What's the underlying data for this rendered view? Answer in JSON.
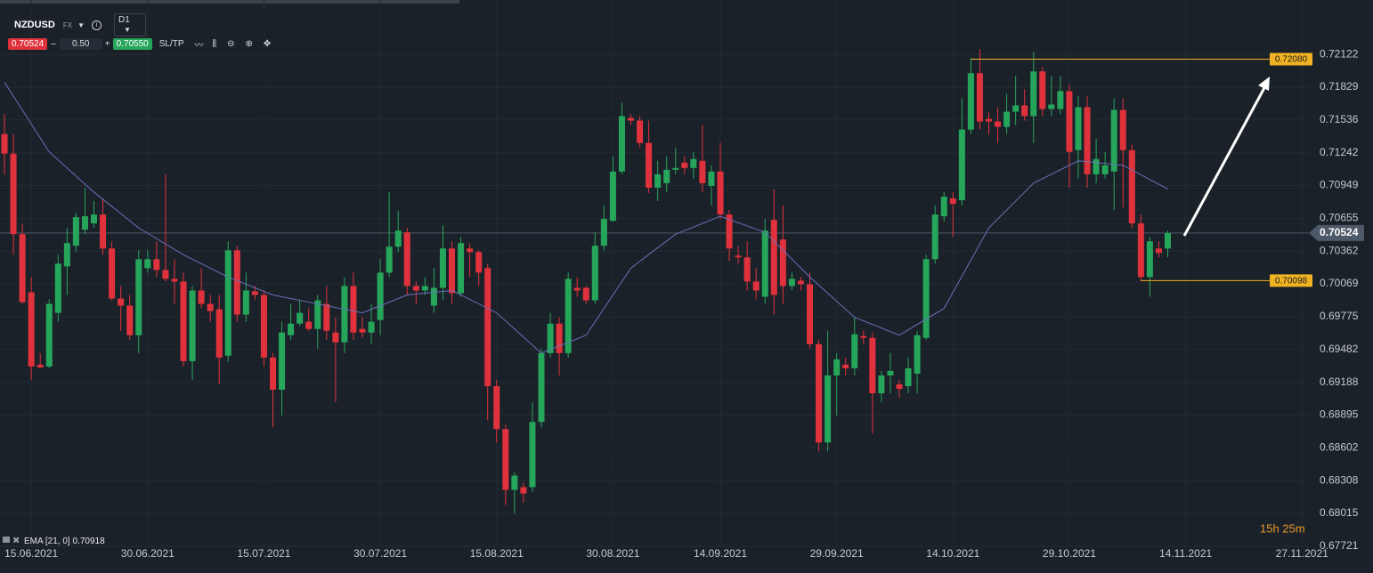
{
  "toolbar": {
    "symbol": "NZDUSD",
    "market": "FX",
    "timeframe": "D1",
    "sell_price": "0.70524",
    "spread": "0.50",
    "buy_price": "0.70550",
    "sltp": "SL/TP"
  },
  "chart_data": {
    "type": "candlestick",
    "categories": [
      null,
      null,
      null,
      "15.06.2021",
      null,
      null,
      null,
      null,
      null,
      null,
      null,
      null,
      null,
      null,
      null,
      null,
      "30.06.2021",
      null,
      null,
      null,
      null,
      null,
      null,
      null,
      null,
      null,
      null,
      null,
      null,
      "15.07.2021",
      null,
      null,
      null,
      null,
      null,
      null,
      null,
      null,
      null,
      null,
      null,
      null,
      "30.07.2021",
      null,
      null,
      null,
      null,
      null,
      null,
      null,
      null,
      null,
      null,
      null,
      null,
      "15.08.2021",
      null,
      null,
      null,
      null,
      null,
      null,
      null,
      null,
      null,
      null,
      null,
      null,
      "30.08.2021",
      null,
      null,
      null,
      null,
      null,
      null,
      null,
      null,
      null,
      null,
      null,
      "14.09.2021",
      null,
      null,
      null,
      null,
      null,
      null,
      null,
      null,
      null,
      null,
      null,
      null,
      "29.09.2021",
      null,
      null,
      null,
      null,
      null,
      null,
      null,
      null,
      null,
      null,
      null,
      null,
      "14.10.2021",
      null,
      null,
      null,
      null,
      null,
      null,
      null,
      null,
      null,
      null,
      null,
      null,
      "29.10.2021",
      null,
      null,
      null,
      null,
      null,
      null,
      null,
      null,
      null,
      null,
      null,
      null,
      "14.11.2021",
      null,
      null,
      null,
      null,
      null,
      null,
      null,
      null,
      null,
      null,
      null,
      null,
      "27.11.2021"
    ],
    "open": [
      0.7141,
      0.71234,
      0.70514,
      0.69994,
      0.69346,
      0.6933,
      0.6981,
      0.70226,
      0.7041,
      0.70554,
      0.7061,
      0.7069,
      0.70386,
      0.69938,
      0.69874,
      0.6961,
      0.7021,
      0.7029,
      0.70194,
      0.70114,
      0.7009,
      0.69378,
      0.7001,
      0.6989,
      0.69842,
      0.69426,
      0.7037,
      0.69794,
      0.70002,
      0.6997,
      0.6941,
      0.69122,
      0.6961,
      0.69714,
      0.6973,
      0.69666,
      0.6989,
      0.69634,
      0.69546,
      0.7005,
      0.69666,
      0.69634,
      0.69746,
      0.7017,
      0.70402,
      0.7053,
      0.7005,
      0.7001,
      0.69874,
      0.70034,
      0.70386,
      0.69986,
      0.70386,
      0.70354,
      0.7021,
      0.69154,
      0.6877,
      0.68226,
      0.6825,
      0.6825,
      0.68834,
      0.6945,
      0.69714,
      0.6945,
      0.70034,
      0.70034,
      0.69922,
      0.7041,
      0.70634,
      0.71074,
      0.71554,
      0.7153,
      0.7133,
      0.7093,
      0.7097,
      0.7109,
      0.71154,
      0.71106,
      0.7117,
      0.70946,
      0.71074,
      0.7069,
      0.70322,
      0.70306,
      0.7009,
      0.69954,
      0.70642,
      0.70466,
      0.7005,
      0.70098,
      0.70066,
      0.6953,
      0.6865,
      0.6925,
      0.69346,
      0.69314,
      0.69602,
      0.69586,
      0.6909,
      0.6925,
      0.6917,
      0.69154,
      0.69266,
      0.69586,
      0.7029,
      0.70674,
      0.70834,
      0.70818,
      0.7145,
      0.71954,
      0.71546,
      0.71522,
      0.71474,
      0.7161,
      0.71666,
      0.7157,
      0.7197,
      0.71634,
      0.71634,
      0.71794,
      0.71266,
      0.7165,
      0.7105,
      0.7105,
      0.71074,
      0.71626,
      0.71266,
      0.7061,
      0.7013,
      0.70386,
      0.70386,
      null,
      null,
      null,
      null,
      null,
      null,
      null,
      null,
      null,
      null,
      null,
      null,
      null,
      null,
      null
    ],
    "high": [
      0.71586,
      0.7141,
      0.7061,
      0.7013,
      0.6945,
      0.6993,
      0.7033,
      0.7057,
      0.70706,
      0.7093,
      0.7081,
      0.70834,
      0.7045,
      0.7005,
      0.6997,
      0.7037,
      0.7037,
      0.7045,
      0.7105,
      0.7029,
      0.7017,
      0.7005,
      0.7021,
      0.6997,
      0.6997,
      0.7045,
      0.7041,
      0.7017,
      0.7005,
      0.7001,
      0.6945,
      0.6973,
      0.6989,
      0.6993,
      0.6985,
      0.6997,
      0.7005,
      0.6977,
      0.7013,
      0.7017,
      0.6977,
      0.6989,
      0.7029,
      0.7089,
      0.70722,
      0.7057,
      0.7009,
      0.7013,
      0.7021,
      0.70594,
      0.7045,
      0.7049,
      0.70434,
      0.7037,
      0.7025,
      0.6921,
      0.6881,
      0.68386,
      0.6829,
      0.6901,
      0.6949,
      0.6981,
      0.6977,
      0.7017,
      0.7013,
      0.7005,
      0.7053,
      0.7077,
      0.7121,
      0.7169,
      0.71586,
      0.7157,
      0.7153,
      0.7117,
      0.7121,
      0.7129,
      0.7121,
      0.7125,
      0.7149,
      0.7113,
      0.7133,
      0.7073,
      0.7041,
      0.7045,
      0.7021,
      0.7065,
      0.70914,
      0.7077,
      0.7017,
      0.7013,
      0.7017,
      0.6957,
      0.6965,
      0.6945,
      0.6941,
      0.6977,
      0.6965,
      0.69634,
      0.6929,
      0.6945,
      0.6921,
      0.6941,
      0.6965,
      0.7033,
      0.7077,
      0.7089,
      0.7089,
      0.7173,
      0.7209,
      0.7217,
      0.7161,
      0.7165,
      0.7177,
      0.7193,
      0.7181,
      0.72146,
      0.7201,
      0.7193,
      0.7193,
      0.7185,
      0.71746,
      0.71746,
      0.7137,
      0.7125,
      0.7173,
      0.7173,
      0.71314,
      0.7069,
      0.7049,
      0.7045,
      0.70546,
      null,
      null,
      null,
      null,
      null,
      null,
      null,
      null,
      null,
      null,
      null,
      null,
      null,
      null,
      null
    ],
    "low": [
      0.7105,
      0.7033,
      0.6989,
      0.6921,
      0.69314,
      0.69314,
      0.6973,
      0.6997,
      0.70354,
      0.70514,
      0.7057,
      0.7033,
      0.69922,
      0.6965,
      0.6957,
      0.6945,
      0.7017,
      0.7013,
      0.7009,
      0.6989,
      0.6933,
      0.6921,
      0.6985,
      0.6973,
      0.6917,
      0.6937,
      0.6973,
      0.6973,
      0.6993,
      0.6933,
      0.68786,
      0.6889,
      0.6957,
      0.6969,
      0.6965,
      0.6949,
      0.6957,
      0.6901,
      0.6945,
      0.6957,
      0.69586,
      0.6953,
      0.6961,
      0.7013,
      0.70354,
      0.6997,
      0.6989,
      0.6997,
      0.6981,
      0.6993,
      0.6989,
      0.69954,
      0.7013,
      0.7005,
      0.6885,
      0.6865,
      0.6809,
      0.6801,
      0.68114,
      0.6821,
      0.68786,
      0.6941,
      0.6925,
      0.6941,
      0.69954,
      0.6989,
      0.6989,
      0.7037,
      0.70626,
      0.7105,
      0.7149,
      0.7129,
      0.70882,
      0.7081,
      0.7089,
      0.7105,
      0.7105,
      0.7101,
      0.7089,
      0.7077,
      0.7065,
      0.70274,
      0.7025,
      0.7001,
      0.6993,
      0.6989,
      0.69794,
      0.6989,
      0.7001,
      0.7001,
      0.6949,
      0.6857,
      0.6857,
      0.6889,
      0.6925,
      0.6925,
      0.6953,
      0.6873,
      0.6901,
      0.6909,
      0.6905,
      0.6909,
      0.6909,
      0.6957,
      0.7025,
      0.70626,
      0.7049,
      0.7077,
      0.7141,
      0.7145,
      0.7141,
      0.7133,
      0.7141,
      0.7149,
      0.7153,
      0.7133,
      0.7157,
      0.7157,
      0.71586,
      0.7093,
      0.7101,
      0.7093,
      0.7097,
      0.7101,
      0.7073,
      0.70754,
      0.7057,
      0.7009,
      0.69954,
      0.70306,
      0.70306,
      null,
      null,
      null,
      null,
      null,
      null,
      null,
      null,
      null,
      null,
      null,
      null,
      null,
      null,
      null
    ],
    "close": [
      0.71234,
      0.70514,
      0.69906,
      0.6933,
      0.69322,
      0.6989,
      0.7025,
      0.70434,
      0.70666,
      0.70674,
      0.7069,
      0.70386,
      0.69938,
      0.69874,
      0.6961,
      0.7029,
      0.7029,
      0.70194,
      0.70114,
      0.7009,
      0.69378,
      0.7001,
      0.6989,
      0.69826,
      0.6941,
      0.7037,
      0.69794,
      0.7001,
      0.6997,
      0.6941,
      0.69122,
      0.69634,
      0.69714,
      0.6981,
      0.69666,
      0.69922,
      0.6965,
      0.69546,
      0.7005,
      0.69634,
      0.69634,
      0.6973,
      0.7017,
      0.70402,
      0.70546,
      0.7005,
      0.7001,
      0.7005,
      0.70034,
      0.70386,
      0.69986,
      0.70434,
      0.70354,
      0.7017,
      0.69154,
      0.6877,
      0.68226,
      0.68354,
      0.68194,
      0.68834,
      0.6945,
      0.69714,
      0.6945,
      0.70114,
      0.7001,
      0.69922,
      0.7041,
      0.7065,
      0.71074,
      0.7157,
      0.7153,
      0.7133,
      0.7093,
      0.7105,
      0.7109,
      0.71106,
      0.71106,
      0.71186,
      0.7097,
      0.71074,
      0.7069,
      0.70386,
      0.70306,
      0.7009,
      0.7001,
      0.70546,
      0.6997,
      0.7005,
      0.70114,
      0.70066,
      0.6953,
      0.6865,
      0.6925,
      0.69394,
      0.69314,
      0.69618,
      0.69586,
      0.6909,
      0.6925,
      0.6929,
      0.6913,
      0.69314,
      0.6961,
      0.7029,
      0.7069,
      0.7085,
      0.70786,
      0.7145,
      0.71954,
      0.71522,
      0.71522,
      0.71474,
      0.7161,
      0.71666,
      0.7157,
      0.7197,
      0.71634,
      0.71674,
      0.71794,
      0.7125,
      0.7165,
      0.7105,
      0.71186,
      0.7113,
      0.71626,
      0.71266,
      0.7061,
      0.7013,
      0.7045,
      0.70346,
      0.70524,
      null,
      null,
      null,
      null,
      null,
      null,
      null,
      null,
      null,
      null,
      null,
      null,
      null,
      null,
      null
    ],
    "up_color": "#26a65b",
    "down_color": "#e0323c",
    "ylim": [
      0.67721,
      0.7245
    ],
    "yticks": [
      0.72122,
      0.71829,
      0.71536,
      0.71242,
      0.70949,
      0.70655,
      0.70362,
      0.70069,
      0.69775,
      0.69482,
      0.69188,
      0.68895,
      0.68602,
      0.68308,
      0.68015,
      0.67721
    ],
    "grid": true,
    "current_price": 0.70524,
    "levels": [
      {
        "value": 0.7208,
        "label": "0.72080"
      },
      0.70098
    ],
    "level_color": "#f0b323",
    "indicator": {
      "name": "EMA [21, 0]",
      "last_value": 0.70918,
      "color": "#6a70b8",
      "x": [
        0,
        5,
        10,
        15,
        20,
        25,
        30,
        35,
        40,
        45,
        50,
        55,
        60,
        65,
        70,
        75,
        80,
        85,
        90,
        95,
        100,
        105,
        110,
        115,
        120,
        125,
        130
      ],
      "values": [
        0.71874,
        0.7125,
        0.7089,
        0.7057,
        0.7033,
        0.7013,
        0.6997,
        0.6989,
        0.6981,
        0.6997,
        0.7001,
        0.6981,
        0.6945,
        0.6961,
        0.7021,
        0.70514,
        0.70674,
        0.7053,
        0.7013,
        0.6977,
        0.6961,
        0.6985,
        0.7057,
        0.7097,
        0.7117,
        0.7113,
        0.70918
      ]
    },
    "timer": "15h 25m"
  }
}
